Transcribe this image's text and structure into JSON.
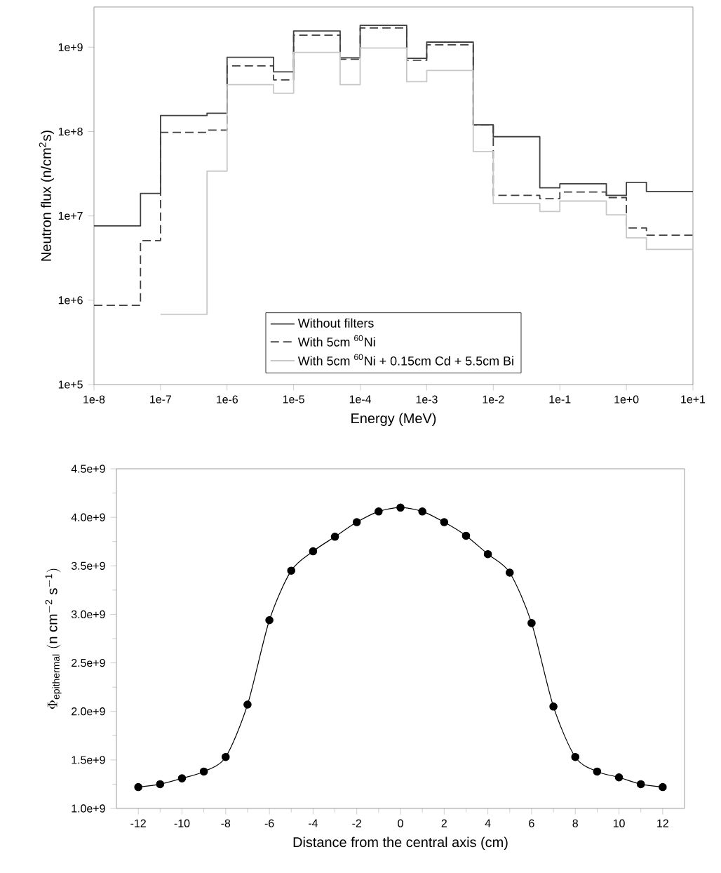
{
  "chart_data": [
    {
      "type": "step",
      "xlabel": "Energy (MeV)",
      "ylabel": "Neutron flux (n/cm$^{2}$s)",
      "log": "xy",
      "legend": "bottom",
      "x": [
        1e-08,
        5e-08,
        1e-07,
        5e-07,
        1e-06,
        5e-06,
        1e-05,
        5e-05,
        0.0001,
        0.0005,
        0.001,
        0.005,
        0.01,
        0.05,
        0.1,
        0.5,
        1,
        2,
        10
      ],
      "xlim": [
        1e-08,
        10
      ],
      "ylim": [
        100000.0,
        3000000000.0
      ],
      "xticks": [
        {
          "value": 1e-08,
          "label": "1e-8"
        },
        {
          "value": 1e-07,
          "label": "1e-7"
        },
        {
          "value": 1e-06,
          "label": "1e-6"
        },
        {
          "value": 1e-05,
          "label": "1e-5"
        },
        {
          "value": 0.0001,
          "label": "1e-4"
        },
        {
          "value": 0.001,
          "label": "1e-3"
        },
        {
          "value": 0.01,
          "label": "1e-2"
        },
        {
          "value": 0.1,
          "label": "1e-1"
        },
        {
          "value": 1,
          "label": "1e+0"
        },
        {
          "value": 10,
          "label": "1e+1"
        }
      ],
      "yticks": [
        {
          "value": 100000.0,
          "label": "1e+5"
        },
        {
          "value": 1000000.0,
          "label": "1e+6"
        },
        {
          "value": 10000000.0,
          "label": "1e+7"
        },
        {
          "value": 100000000.0,
          "label": "1e+8"
        },
        {
          "value": 1000000000.0,
          "label": "1e+9"
        }
      ],
      "series": [
        {
          "name": "Without filters",
          "color": "#404040",
          "line_style": "solid",
          "values": [
            7600000.0,
            18500000.0,
            155000000.0,
            165000000.0,
            760000000.0,
            510000000.0,
            1560000000.0,
            750000000.0,
            1820000000.0,
            740000000.0,
            1150000000.0,
            120000000.0,
            87000000.0,
            21500000.0,
            24000000.0,
            17500000.0,
            25000000.0,
            19500000.0,
            19500000.0
          ]
        },
        {
          "name": "With 5cm $^{60}$Ni",
          "color": "#404040",
          "line_style": "dashed",
          "values": [
            870000.0,
            5100000.0,
            98000000.0,
            104000000.0,
            600000000.0,
            410000000.0,
            1390000000.0,
            720000000.0,
            1690000000.0,
            700000000.0,
            1070000000.0,
            120000000.0,
            17500000.0,
            16000000.0,
            19200000.0,
            16500000.0,
            7200000.0,
            5900000.0,
            5900000.0
          ]
        },
        {
          "name": "With 5cm $^{60}$Ni + 0.15cm Cd + 5.5cm Bi",
          "color": "#c8c8c8",
          "line_style": "solid",
          "values": [
            null,
            null,
            680000.0,
            34000000.0,
            360000000.0,
            285000000.0,
            870000000.0,
            360000000.0,
            980000000.0,
            390000000.0,
            530000000.0,
            58000000.0,
            14000000.0,
            11300000.0,
            15000000.0,
            10300000.0,
            5500000.0,
            4000000.0,
            4000000.0
          ]
        }
      ]
    },
    {
      "type": "line",
      "xlabel": "Distance from the central axis (cm)",
      "ylabel": "\\Phi_{\\mathrm{epithermal}}\\;(\\mathrm{n\\ cm^{-2}\\ s^{-1}})",
      "marker": "circle",
      "color": "#000000",
      "x": [
        -12,
        -11,
        -10,
        -9,
        -8,
        -7,
        -6,
        -5,
        -4,
        -3,
        -2,
        -1,
        0,
        1,
        2,
        3,
        4,
        5,
        6,
        7,
        8,
        9,
        10,
        11,
        12
      ],
      "values": [
        1220000000.0,
        1250000000.0,
        1310000000.0,
        1380000000.0,
        1530000000.0,
        2070000000.0,
        2940000000.0,
        3450000000.0,
        3650000000.0,
        3800000000.0,
        3950000000.0,
        4060000000.0,
        4100000000.0,
        4060000000.0,
        3950000000.0,
        3810000000.0,
        3620000000.0,
        3430000000.0,
        2910000000.0,
        2050000000.0,
        1530000000.0,
        1380000000.0,
        1320000000.0,
        1250000000.0,
        1220000000.0
      ],
      "xlim": [
        -13,
        13
      ],
      "ylim": [
        1000000000.0,
        4500000000.0
      ],
      "xticks": [
        -12,
        -10,
        -8,
        -6,
        -4,
        -2,
        0,
        2,
        4,
        6,
        8,
        10,
        12
      ],
      "yticks": [
        {
          "value": 1000000000.0,
          "label": "1.0e+9"
        },
        {
          "value": 1500000000.0,
          "label": "1.5e+9"
        },
        {
          "value": 2000000000.0,
          "label": "2.0e+9"
        },
        {
          "value": 2500000000.0,
          "label": "2.5e+9"
        },
        {
          "value": 3000000000.0,
          "label": "3.0e+9"
        },
        {
          "value": 3500000000.0,
          "label": "3.5e+9"
        },
        {
          "value": 4000000000.0,
          "label": "4.0e+9"
        },
        {
          "value": 4500000000.0,
          "label": "4.5e+9"
        }
      ]
    }
  ]
}
